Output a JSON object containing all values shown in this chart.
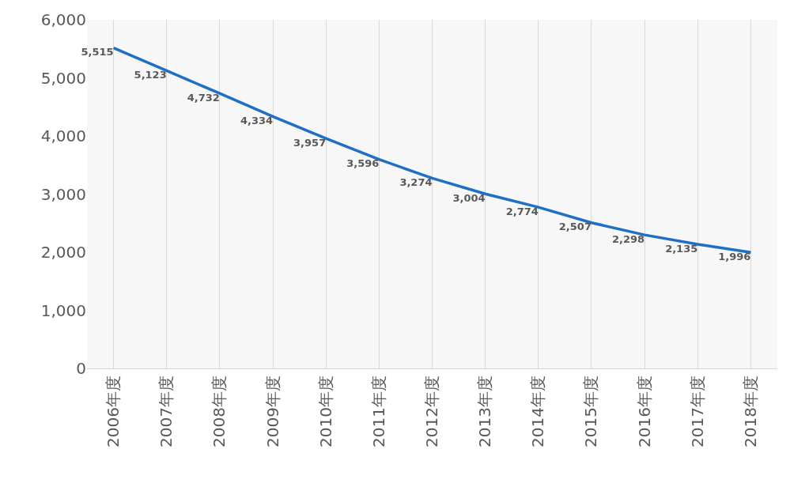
{
  "chart_data": {
    "type": "line",
    "categories": [
      "2006年度",
      "2007年度",
      "2008年度",
      "2009年度",
      "2010年度",
      "2011年度",
      "2012年度",
      "2013年度",
      "2014年度",
      "2015年度",
      "2016年度",
      "2017年度",
      "2018年度"
    ],
    "series": [
      {
        "color": "#1f6fc5",
        "values": [
          5515,
          5123,
          4732,
          4334,
          3957,
          3596,
          3274,
          3004,
          2774,
          2507,
          2298,
          2135,
          1996
        ],
        "value_labels": [
          "5,515",
          "5,123",
          "4,732",
          "4,334",
          "3,957",
          "3,596",
          "3,274",
          "3,004",
          "2,774",
          "2,507",
          "2,298",
          "2,135",
          "1,996"
        ]
      }
    ],
    "ylim": [
      0,
      6000
    ],
    "yticks": [
      {
        "value": 0,
        "label": "0"
      },
      {
        "value": 1000,
        "label": "1,000"
      },
      {
        "value": 2000,
        "label": "2,000"
      },
      {
        "value": 3000,
        "label": "3,000"
      },
      {
        "value": 4000,
        "label": "4,000"
      },
      {
        "value": 5000,
        "label": "5,000"
      },
      {
        "value": 6000,
        "label": "6,000"
      }
    ],
    "grid": "x",
    "legend": false,
    "marker": "none",
    "line_style": "solid"
  }
}
